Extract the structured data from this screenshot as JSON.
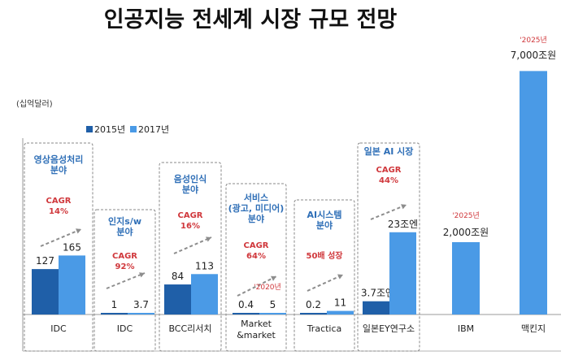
{
  "chart_data": {
    "type": "bar",
    "title": "인공지능 전세계 시장 규모 전망",
    "unit_label": "(십억달러)",
    "series": [
      {
        "name": "2015년",
        "color": "#1f5fa8"
      },
      {
        "name": "2017년",
        "color": "#4a9ae6"
      }
    ],
    "groups": [
      {
        "category": "IDC",
        "area": [
          "영상음성처리",
          "분야"
        ],
        "cagr": [
          "CAGR",
          "14%"
        ],
        "values": [
          127,
          165
        ],
        "labels": [
          "127",
          "165"
        ]
      },
      {
        "category": "IDC",
        "area": [
          "인지s/w",
          "분야"
        ],
        "cagr": [
          "CAGR",
          "92%"
        ],
        "values": [
          1,
          3.7
        ],
        "labels": [
          "1",
          "3.7"
        ]
      },
      {
        "category": "BCC리서치",
        "area": [
          "음성인식",
          "분야"
        ],
        "cagr": [
          "CAGR",
          "16%"
        ],
        "values": [
          84,
          113
        ],
        "labels": [
          "84",
          "113"
        ]
      },
      {
        "category": [
          "Market",
          "&market"
        ],
        "area": [
          "서비스",
          "(광고, 미디어)",
          "분야"
        ],
        "cagr": [
          "CAGR",
          "64%"
        ],
        "year_note": "'2020년",
        "values": [
          0.4,
          5
        ],
        "labels": [
          "0.4",
          "5"
        ]
      },
      {
        "category": "Tractica",
        "area": [
          "AI시스템",
          "분야"
        ],
        "cagr": [
          "50배 성장"
        ],
        "values": [
          0.2,
          11
        ],
        "labels": [
          "0.2",
          "11"
        ]
      },
      {
        "category": "일본EY연구소",
        "area": [
          "일본 AI 시장"
        ],
        "cagr": [
          "CAGR",
          "44%"
        ],
        "values": [
          3.7,
          23
        ],
        "labels": [
          "3.7조엔",
          "23조엔"
        ]
      },
      {
        "category": "IBM",
        "year_note": "'2025년",
        "values": [
          null,
          2000
        ],
        "labels": [
          "",
          "2,000조원"
        ]
      },
      {
        "category": "맥킨지",
        "year_note": "'2025년",
        "values": [
          null,
          7000
        ],
        "labels": [
          "",
          "7,000조원"
        ]
      }
    ]
  }
}
